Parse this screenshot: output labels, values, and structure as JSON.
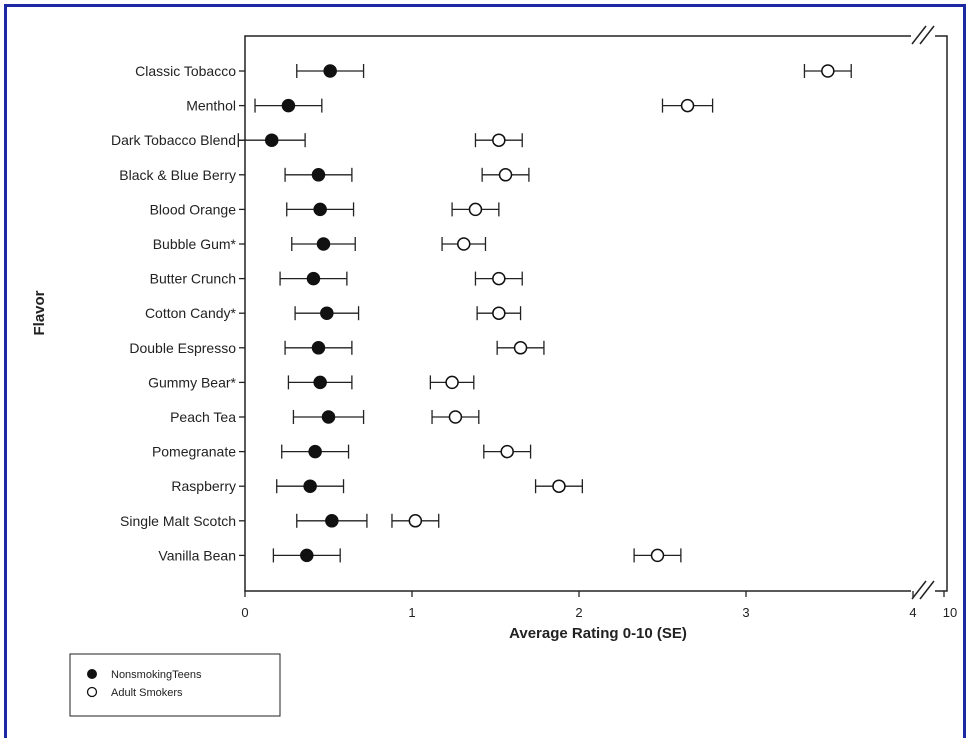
{
  "chart_data": {
    "type": "scatter",
    "categories": [
      "Classic Tobacco",
      "Menthol",
      "Dark Tobacco Blend",
      "Black & Blue Berry",
      "Blood Orange",
      "Bubble Gum*",
      "Butter Crunch",
      "Cotton Candy*",
      "Double Espresso",
      "Gummy Bear*",
      "Peach Tea",
      "Pomegranate",
      "Raspberry",
      "Single Malt Scotch",
      "Vanilla Bean"
    ],
    "series": [
      {
        "name": "NonsmokingTeens",
        "marker": "filled-circle",
        "values": [
          0.51,
          0.26,
          0.16,
          0.44,
          0.45,
          0.47,
          0.41,
          0.49,
          0.44,
          0.45,
          0.5,
          0.42,
          0.39,
          0.52,
          0.37
        ],
        "errors": [
          0.2,
          0.2,
          0.2,
          0.2,
          0.2,
          0.19,
          0.2,
          0.19,
          0.2,
          0.19,
          0.21,
          0.2,
          0.2,
          0.21,
          0.2
        ]
      },
      {
        "name": "Adult Smokers",
        "marker": "open-circle",
        "values": [
          3.49,
          2.65,
          1.52,
          1.56,
          1.38,
          1.31,
          1.52,
          1.52,
          1.65,
          1.24,
          1.26,
          1.57,
          1.88,
          1.02,
          2.47
        ],
        "errors": [
          0.14,
          0.15,
          0.14,
          0.14,
          0.14,
          0.13,
          0.14,
          0.13,
          0.14,
          0.13,
          0.14,
          0.14,
          0.14,
          0.14,
          0.14
        ]
      }
    ],
    "x_ticks": [
      "0",
      "1",
      "2",
      "3",
      "4",
      "10"
    ],
    "xlabel": "Average Rating 0-10 (SE)",
    "ylabel": "Flavor",
    "xlim": [
      0,
      4
    ],
    "axis_break": true,
    "grid": false,
    "legend_position": "bottom-left"
  }
}
